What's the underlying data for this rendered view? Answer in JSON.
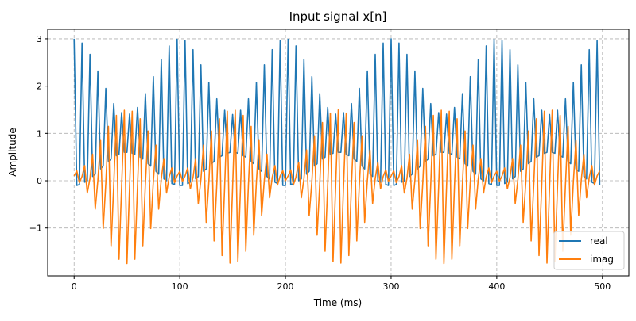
{
  "chart_data": {
    "type": "line",
    "title": "Input signal x[n]",
    "xlabel": "Time (ms)",
    "ylabel": "Amplitude",
    "xlim": [
      -25,
      525
    ],
    "ylim": [
      -2.01,
      3.2
    ],
    "xticks": [
      0,
      100,
      200,
      300,
      400,
      500
    ],
    "yticks": [
      -1,
      0,
      1,
      2,
      3
    ],
    "ytick_labels": [
      "−1",
      "0",
      "1",
      "2",
      "3"
    ],
    "grid": true,
    "legend_position": "lower right",
    "colors": {
      "real": "#1f77b4",
      "imag": "#ff7f0e",
      "grid": "#b0b0b0"
    },
    "series": [
      {
        "name": "real",
        "values": [
          3.0,
          -0.1,
          -0.08,
          2.91,
          -0.03,
          0,
          2.67,
          0.09,
          0.14,
          2.32,
          0.25,
          0.31,
          1.95,
          0.41,
          0.46,
          1.63,
          0.53,
          0.56,
          1.44,
          0.6,
          0.6,
          1.41,
          0.58,
          0.56,
          1.55,
          0.5,
          0.46,
          1.84,
          0.36,
          0.31,
          2.2,
          0.2,
          0.14,
          2.56,
          0.04,
          0,
          2.85,
          -0.06,
          -0.08,
          2.99,
          -0.1,
          -0.1,
          2.96,
          -0.06,
          -0.03,
          2.77,
          0.04,
          0.09,
          2.45,
          0.2,
          0.25,
          2.08,
          0.36,
          0.41,
          1.73,
          0.5,
          0.53,
          1.49,
          0.58,
          0.6,
          1.4,
          0.6,
          0.58,
          1.49,
          0.53,
          0.5,
          1.73,
          0.41,
          0.36,
          2.08,
          0.25,
          0.2,
          2.45,
          0.09,
          0.04,
          2.77,
          -0.03,
          -0.06,
          2.96,
          -0.1,
          -0.1,
          2.99,
          -0.08,
          -0.06,
          2.85,
          0,
          0.04,
          2.56,
          0.14,
          0.2,
          2.2,
          0.31,
          0.36,
          1.84,
          0.46,
          0.5,
          1.55,
          0.56,
          0.58,
          1.41,
          0.6,
          0.6,
          1.44,
          0.56,
          0.53,
          1.63,
          0.46,
          0.41,
          1.95,
          0.31,
          0.25,
          2.32,
          0.14,
          0.09,
          2.67,
          0,
          -0.03,
          2.91,
          -0.08,
          -0.1,
          3.0,
          -0.1,
          -0.08,
          2.91,
          -0.03,
          0,
          2.67,
          0.09,
          0.14,
          2.32,
          0.25,
          0.31,
          1.95,
          0.41,
          0.46,
          1.63,
          0.53,
          0.56,
          1.44,
          0.6,
          0.6,
          1.41,
          0.58,
          0.56,
          1.55,
          0.5,
          0.46,
          1.84,
          0.36,
          0.31,
          2.2,
          0.2,
          0.14,
          2.56,
          0.04,
          0,
          2.85,
          -0.06,
          -0.08,
          2.99,
          -0.1,
          -0.1,
          2.96,
          -0.06,
          -0.03,
          2.77,
          0.04,
          0.09,
          2.45,
          0.2,
          0.25,
          2.08,
          0.36,
          0.41,
          1.73,
          0.5,
          0.53,
          1.49,
          0.58,
          0.6,
          1.4,
          0.6,
          0.58,
          1.49,
          0.53,
          0.5,
          1.73,
          0.41,
          0.36,
          2.08,
          0.25,
          0.2,
          2.45,
          0.09,
          0.04,
          2.77,
          -0.03,
          -0.06,
          2.96,
          -0.1
        ]
      },
      {
        "name": "imag",
        "values": [
          0.1,
          0.21,
          -0.04,
          0.09,
          0.32,
          -0.26,
          0.05,
          0.56,
          -0.6,
          0.01,
          0.85,
          -1.01,
          -0.05,
          1.15,
          -1.39,
          -0.09,
          1.38,
          -1.66,
          -0.12,
          1.49,
          -1.75,
          -0.12,
          1.47,
          -1.66,
          -0.1,
          1.31,
          -1.39,
          -0.06,
          1.05,
          -1.01,
          -0.01,
          0.75,
          -0.6,
          0.04,
          0.47,
          -0.26,
          0.08,
          0.27,
          -0.04,
          0.1,
          0.2,
          -0.01,
          0.1,
          0.27,
          -0.17,
          0.07,
          0.47,
          -0.48,
          0.02,
          0.75,
          -0.88,
          -0.03,
          1.05,
          -1.27,
          -0.08,
          1.31,
          -1.58,
          -0.11,
          1.47,
          -1.74,
          -0.13,
          1.49,
          -1.71,
          -0.11,
          1.38,
          -1.49,
          -0.08,
          1.15,
          -1.15,
          -0.03,
          0.85,
          -0.74,
          0.02,
          0.56,
          -0.36,
          0.07,
          0.32,
          -0.09,
          0.1,
          0.21,
          0,
          0.1,
          0.23,
          -0.09,
          0.08,
          0.39,
          -0.36,
          0.04,
          0.65,
          -0.74,
          -0.01,
          0.95,
          -1.15,
          -0.06,
          1.23,
          -1.49,
          -0.1,
          1.43,
          -1.71,
          -0.12,
          1.5,
          -1.74,
          -0.12,
          1.43,
          -1.58,
          -0.09,
          1.23,
          -1.27,
          -0.05,
          0.95,
          -0.88,
          0.01,
          0.65,
          -0.48,
          0.05,
          0.39,
          -0.17,
          0.09,
          0.23,
          -0.01,
          0.1,
          0.21,
          -0.04,
          0.09,
          0.32,
          -0.26,
          0.05,
          0.56,
          -0.6,
          0.01,
          0.85,
          -1.01,
          -0.05,
          1.15,
          -1.39,
          -0.09,
          1.38,
          -1.66,
          -0.12,
          1.49,
          -1.75,
          -0.12,
          1.47,
          -1.66,
          -0.1,
          1.31,
          -1.39,
          -0.06,
          1.05,
          -1.01,
          -0.01,
          0.75,
          -0.6,
          0.04,
          0.47,
          -0.26,
          0.08,
          0.27,
          -0.04,
          0.1,
          0.2,
          -0.01,
          0.1,
          0.27,
          -0.17,
          0.07,
          0.47,
          -0.48,
          0.02,
          0.75,
          -0.88,
          -0.03,
          1.05,
          -1.27,
          -0.08,
          1.31,
          -1.58,
          -0.11,
          1.47,
          -1.74,
          -0.13,
          1.49,
          -1.71,
          -0.11,
          1.38,
          -1.49,
          -0.08,
          1.15,
          -1.15,
          -0.03,
          0.85,
          -0.74,
          0.02,
          0.56,
          -0.36,
          0.07,
          0.32,
          -0.09,
          0.1,
          0.21
        ]
      }
    ],
    "x_range": [
      0,
      497.5
    ]
  }
}
